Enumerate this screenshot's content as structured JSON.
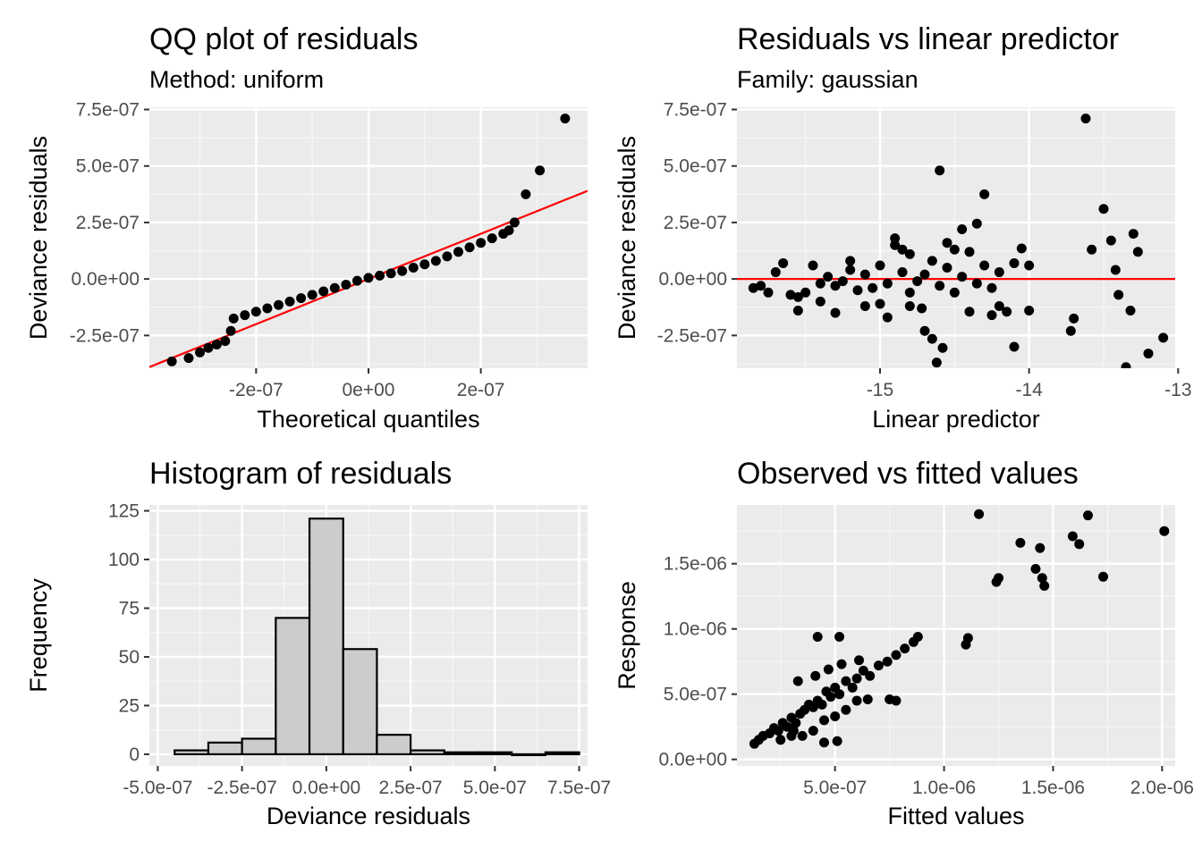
{
  "chart_data": [
    {
      "type": "scatter",
      "title": "QQ plot of residuals",
      "subtitle": "Method: uniform",
      "xlabel": "Theoretical quantiles",
      "ylabel": "Deviance residuals",
      "xlim": [
        -3.9e-07,
        3.9e-07
      ],
      "ylim": [
        -3.95e-07,
        7.6e-07
      ],
      "x_ticks": [
        -2e-07,
        0,
        2e-07
      ],
      "x_tick_labels": [
        "-2e-07",
        "0e+00",
        "2e-07"
      ],
      "y_ticks": [
        -2.5e-07,
        0,
        2.5e-07,
        5e-07,
        7.5e-07
      ],
      "y_tick_labels": [
        "-2.5e-07",
        "0.0e+00",
        "2.5e-07",
        "5.0e-07",
        "7.5e-07"
      ],
      "grid": true,
      "reference_line": {
        "slope": 1.0,
        "intercept": 0,
        "color": "#ff0000"
      },
      "points_note": "sorted residuals vs uniform-method theoretical quantiles",
      "points_x": [
        -3.5e-07,
        -3.2e-07,
        -3e-07,
        -2.85e-07,
        -2.7e-07,
        -2.55e-07,
        -2.45e-07,
        -2.4e-07,
        -2.2e-07,
        -2e-07,
        -1.8e-07,
        -1.6e-07,
        -1.4e-07,
        -1.2e-07,
        -1e-07,
        -8e-08,
        -6e-08,
        -4e-08,
        -2e-08,
        0,
        2e-08,
        4e-08,
        6e-08,
        8e-08,
        1e-07,
        1.2e-07,
        1.4e-07,
        1.6e-07,
        1.8e-07,
        2e-07,
        2.2e-07,
        2.4e-07,
        2.5e-07,
        2.6e-07,
        2.8e-07,
        3.05e-07,
        3.5e-07
      ],
      "points_y": [
        -3.65e-07,
        -3.5e-07,
        -3.25e-07,
        -3.05e-07,
        -2.9e-07,
        -2.75e-07,
        -2.3e-07,
        -1.75e-07,
        -1.6e-07,
        -1.45e-07,
        -1.3e-07,
        -1.15e-07,
        -1e-07,
        -8.5e-08,
        -7e-08,
        -5.5e-08,
        -4e-08,
        -2.5e-08,
        -8e-09,
        5e-09,
        1.5e-08,
        2.5e-08,
        3.5e-08,
        5e-08,
        6.5e-08,
        8e-08,
        1e-07,
        1.2e-07,
        1.4e-07,
        1.6e-07,
        1.8e-07,
        2e-07,
        2.15e-07,
        2.5e-07,
        3.75e-07,
        4.8e-07,
        7.1e-07
      ]
    },
    {
      "type": "scatter",
      "title": "Residuals vs linear predictor",
      "subtitle": "Family: gaussian",
      "xlabel": "Linear predictor",
      "ylabel": "Deviance residuals",
      "xlim": [
        -15.96,
        -13.02
      ],
      "ylim": [
        -3.95e-07,
        7.6e-07
      ],
      "x_ticks": [
        -15,
        -14,
        -13
      ],
      "x_tick_labels": [
        "-15",
        "-14",
        "-13"
      ],
      "y_ticks": [
        -2.5e-07,
        0,
        2.5e-07,
        5e-07,
        7.5e-07
      ],
      "y_tick_labels": [
        "-2.5e-07",
        "0.0e+00",
        "2.5e-07",
        "5.0e-07",
        "7.5e-07"
      ],
      "grid": true,
      "hline": {
        "y": 0,
        "color": "#ff0000"
      },
      "points_x": [
        -15.85,
        -15.8,
        -15.75,
        -15.7,
        -15.65,
        -15.6,
        -15.55,
        -15.5,
        -15.45,
        -15.4,
        -15.35,
        -15.3,
        -15.25,
        -15.2,
        -15.15,
        -15.1,
        -15.05,
        -15.0,
        -14.95,
        -14.9,
        -14.85,
        -14.8,
        -14.75,
        -14.7,
        -14.65,
        -14.6,
        -14.55,
        -14.5,
        -14.45,
        -14.4,
        -14.35,
        -14.3,
        -14.25,
        -14.2,
        -14.1,
        -14.0,
        -15.3,
        -15.1,
        -14.95,
        -14.85,
        -14.8,
        -14.7,
        -14.6,
        -14.62,
        -14.58,
        -14.55,
        -14.35,
        -14.3,
        -14.2,
        -14.1,
        -14.05,
        -15.55,
        -15.4,
        -15.2,
        -15.0,
        -14.9,
        -14.8,
        -14.72,
        -14.65,
        -14.5,
        -14.45,
        -14.4,
        -14.25,
        -14.15,
        -14.0,
        -13.72,
        -13.7,
        -13.62,
        -13.58,
        -13.5,
        -13.45,
        -13.42,
        -13.4,
        -13.32,
        -13.3,
        -13.27,
        -13.1,
        -13.2,
        -13.35
      ],
      "points_y": [
        -4e-08,
        -3e-08,
        -6e-08,
        3e-08,
        7e-08,
        -7e-08,
        -8e-08,
        -6e-08,
        6e-08,
        -2e-08,
        1e-08,
        -3e-08,
        -1e-08,
        4e-08,
        -5e-08,
        2e-08,
        -4e-08,
        6e-08,
        -2e-08,
        1.5e-07,
        3e-08,
        -6e-08,
        -1e-08,
        2e-08,
        8e-08,
        -3e-08,
        5e-08,
        -6e-08,
        1e-08,
        1.2e-07,
        -2e-08,
        6e-08,
        -4e-08,
        3e-08,
        7e-08,
        6e-08,
        -1.5e-07,
        -1.2e-07,
        -1.7e-07,
        1.3e-07,
        -1.2e-07,
        -2.3e-07,
        4.8e-07,
        -3.7e-07,
        -3.05e-07,
        1.6e-07,
        2.45e-07,
        3.75e-07,
        -1.2e-07,
        -3e-07,
        1.35e-07,
        -1.4e-07,
        -1e-07,
        8e-08,
        -1.1e-07,
        1.8e-07,
        1.1e-07,
        -1.3e-07,
        -2.65e-07,
        1.3e-07,
        2.2e-07,
        -1.45e-07,
        -1.6e-07,
        -1.45e-07,
        -1.4e-07,
        -2.3e-07,
        -1.75e-07,
        7.1e-07,
        1.3e-07,
        3.1e-07,
        1.7e-07,
        4e-08,
        -7e-08,
        -1.4e-07,
        2e-07,
        1.2e-07,
        -2.6e-07,
        -3.3e-07,
        -3.9e-07
      ]
    },
    {
      "type": "bar",
      "title": "Histogram of residuals",
      "xlabel": "Deviance residuals",
      "ylabel": "Frequency",
      "xlim": [
        -5.25e-07,
        7.75e-07
      ],
      "ylim": [
        -6,
        128
      ],
      "x_ticks": [
        -5e-07,
        -2.5e-07,
        0,
        2.5e-07,
        5e-07,
        7.5e-07
      ],
      "x_tick_labels": [
        "-5.0e-07",
        "-2.5e-07",
        "0.0e+00",
        "2.5e-07",
        "5.0e-07",
        "7.5e-07"
      ],
      "y_ticks": [
        0,
        25,
        50,
        75,
        100,
        125
      ],
      "y_tick_labels": [
        "0",
        "25",
        "50",
        "75",
        "100",
        "125"
      ],
      "grid": true,
      "bar_fill": "#cccccc",
      "bar_stroke": "#000000",
      "bins": [
        {
          "x0": -4.5e-07,
          "x1": -3.5e-07,
          "count": 2
        },
        {
          "x0": -3.5e-07,
          "x1": -2.5e-07,
          "count": 6
        },
        {
          "x0": -2.5e-07,
          "x1": -1.5e-07,
          "count": 8
        },
        {
          "x0": -1.5e-07,
          "x1": -5e-08,
          "count": 70
        },
        {
          "x0": -5e-08,
          "x1": 5e-08,
          "count": 121
        },
        {
          "x0": 5e-08,
          "x1": 1.5e-07,
          "count": 54
        },
        {
          "x0": 1.5e-07,
          "x1": 2.5e-07,
          "count": 10
        },
        {
          "x0": 2.5e-07,
          "x1": 3.5e-07,
          "count": 2
        },
        {
          "x0": 3.5e-07,
          "x1": 4.5e-07,
          "count": 1
        },
        {
          "x0": 4.5e-07,
          "x1": 5.5e-07,
          "count": 1
        },
        {
          "x0": 5.5e-07,
          "x1": 6.5e-07,
          "count": 0
        },
        {
          "x0": 6.5e-07,
          "x1": 7.5e-07,
          "count": 1
        }
      ]
    },
    {
      "type": "scatter",
      "title": "Observed vs fitted values",
      "xlabel": "Fitted values",
      "ylabel": "Response",
      "xlim": [
        5e-08,
        2.06e-06
      ],
      "ylim": [
        -5e-08,
        1.95e-06
      ],
      "x_ticks": [
        5e-07,
        1e-06,
        1.5e-06,
        2e-06
      ],
      "x_tick_labels": [
        "5.0e-07",
        "1.0e-06",
        "1.5e-06",
        "2.0e-06"
      ],
      "y_ticks": [
        0,
        5e-07,
        1e-06,
        1.5e-06
      ],
      "y_tick_labels": [
        "0.0e+00",
        "5.0e-07",
        "1.0e-06",
        "1.5e-06"
      ],
      "grid": true,
      "points_x": [
        1.3e-07,
        1.5e-07,
        1.7e-07,
        2e-07,
        2.2e-07,
        2.4e-07,
        2.6e-07,
        2.8e-07,
        3e-07,
        3.2e-07,
        3.4e-07,
        3.6e-07,
        3.8e-07,
        4e-07,
        4.2e-07,
        4.4e-07,
        4.6e-07,
        4.8e-07,
        5e-07,
        5.2e-07,
        5.5e-07,
        5.8e-07,
        6e-07,
        6.3e-07,
        6.6e-07,
        7e-07,
        7.4e-07,
        7.8e-07,
        8.2e-07,
        8.6e-07,
        8.8e-07,
        2.5e-07,
        3e-07,
        3.5e-07,
        4e-07,
        4.5e-07,
        5e-07,
        5.5e-07,
        6e-07,
        6.5e-07,
        3.3e-07,
        4.1e-07,
        4.7e-07,
        5.3e-07,
        6.1e-07,
        4.2e-07,
        5.2e-07,
        3.1e-07,
        4.5e-07,
        5.1e-07,
        7.5e-07,
        7.8e-07,
        1.1e-06,
        1.11e-06,
        1.16e-06,
        1.24e-06,
        1.25e-06,
        1.35e-06,
        1.42e-06,
        1.44e-06,
        1.45e-06,
        1.46e-06,
        1.59e-06,
        1.62e-06,
        1.66e-06,
        1.73e-06,
        2.01e-06
      ],
      "points_y": [
        1.2e-07,
        1.5e-07,
        1.8e-07,
        2e-07,
        2.4e-07,
        2.2e-07,
        2.8e-07,
        2.5e-07,
        3.2e-07,
        2.8e-07,
        3.5e-07,
        3.8e-07,
        4.2e-07,
        4e-07,
        4.5e-07,
        4.2e-07,
        5.2e-07,
        4.8e-07,
        5.5e-07,
        5e-07,
        6e-07,
        5.5e-07,
        6.2e-07,
        6.8e-07,
        6.4e-07,
        7.2e-07,
        7.5e-07,
        8e-07,
        8.5e-07,
        9e-07,
        9.4e-07,
        1.5e-07,
        1.8e-07,
        1.8e-07,
        2.2e-07,
        3e-07,
        3.3e-07,
        3.8e-07,
        4.5e-07,
        4.6e-07,
        6e-07,
        6.4e-07,
        6.9e-07,
        7.3e-07,
        7.6e-07,
        9.4e-07,
        9.4e-07,
        2.2e-07,
        1.3e-07,
        1.4e-07,
        4.6e-07,
        4.5e-07,
        8.8e-07,
        9.3e-07,
        1.88e-06,
        1.36e-06,
        1.39e-06,
        1.66e-06,
        1.46e-06,
        1.62e-06,
        1.39e-06,
        1.33e-06,
        1.71e-06,
        1.65e-06,
        1.87e-06,
        1.4e-06,
        1.75e-06
      ]
    }
  ]
}
